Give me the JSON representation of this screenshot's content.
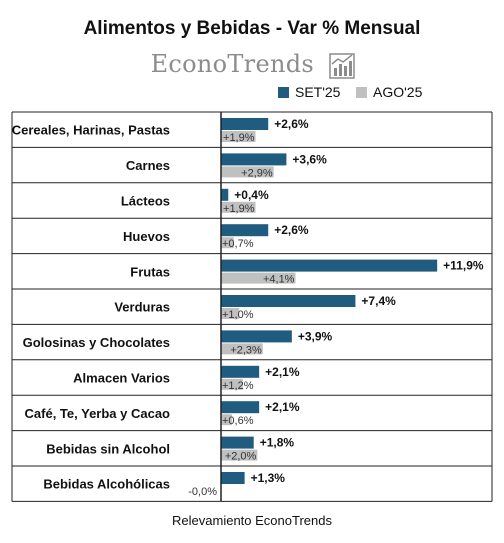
{
  "title": "Alimentos y Bebidas - Var % Mensual",
  "brand": {
    "name": "EconoTrends",
    "icon": "bar-chart-trend-icon"
  },
  "footer": "Relevamiento EconoTrends",
  "legend": [
    {
      "label": "SET'25",
      "color": "#1f5c80"
    },
    {
      "label": "AGO'25",
      "color": "#c0c0c0"
    }
  ],
  "chart_data": {
    "type": "bar",
    "orientation": "horizontal",
    "categories": [
      "Cereales, Harinas, Pastas",
      "Carnes",
      "Lácteos",
      "Huevos",
      "Frutas",
      "Verduras",
      "Golosinas y Chocolates",
      "Almacen Varios",
      "Café, Te, Yerba y Cacao",
      "Bebidas sin Alcohol",
      "Bebidas Alcohólicas"
    ],
    "series": [
      {
        "name": "SET'25",
        "color": "#1f5c80",
        "values": [
          2.6,
          3.6,
          0.4,
          2.6,
          11.9,
          7.4,
          3.9,
          2.1,
          2.1,
          1.8,
          1.3
        ],
        "labels": [
          "+2,6%",
          "+3,6%",
          "+0,4%",
          "+2,6%",
          "+11,9%",
          "+7,4%",
          "+3,9%",
          "+2,1%",
          "+2,1%",
          "+1,8%",
          "+1,3%"
        ]
      },
      {
        "name": "AGO'25",
        "color": "#c0c0c0",
        "values": [
          1.9,
          2.9,
          1.9,
          0.7,
          4.1,
          1.0,
          2.3,
          1.2,
          0.6,
          2.0,
          0.0
        ],
        "labels": [
          "+1,9%",
          "+2,9%",
          "+1,9%",
          "+0,7%",
          "+4,1%",
          "+1,0%",
          "+2,3%",
          "+1,2%",
          "+0,6%",
          "+2,0%",
          "-0,0%"
        ]
      }
    ],
    "xlim": [
      0,
      12
    ],
    "grid": false,
    "legend_position": "top-right"
  }
}
